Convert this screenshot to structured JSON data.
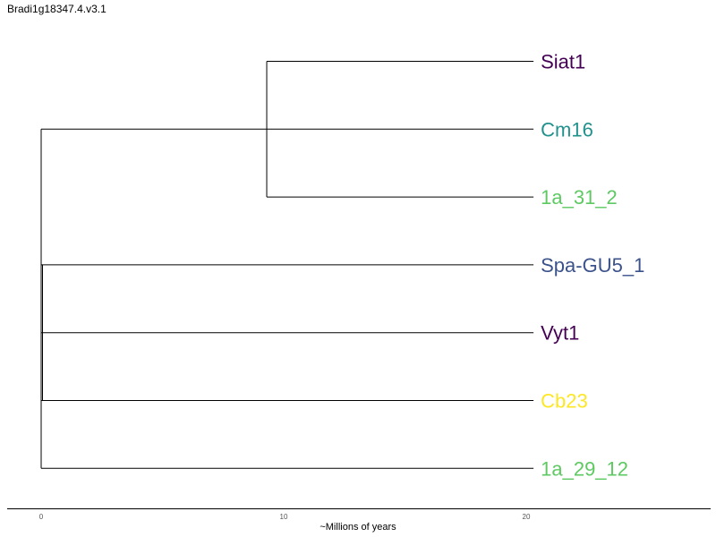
{
  "title": "Bradi1g18347.4.v3.1",
  "axis": {
    "label": "~Millions of years",
    "ticks": [
      0,
      10,
      20
    ]
  },
  "tree": {
    "leaves": [
      {
        "name": "Siat1",
        "color": "#440154",
        "height": 20.3
      },
      {
        "name": "Cm16",
        "color": "#21918c",
        "height": 20.3
      },
      {
        "name": "1a_31_2",
        "color": "#5ec962",
        "height": 20.3
      },
      {
        "name": "Spa-GU5_1",
        "color": "#3b528b",
        "height": 20.3
      },
      {
        "name": "Vyt1",
        "color": "#440154",
        "height": 20.3
      },
      {
        "name": "Cb23",
        "color": "#fde725",
        "height": 20.3
      },
      {
        "name": "1a_29_12",
        "color": "#5ec962",
        "height": 20.3
      }
    ],
    "nodes": [
      {
        "id": "n1",
        "height": 9.3,
        "children": [
          "Siat1",
          "1a_31_2"
        ]
      }
    ]
  }
}
